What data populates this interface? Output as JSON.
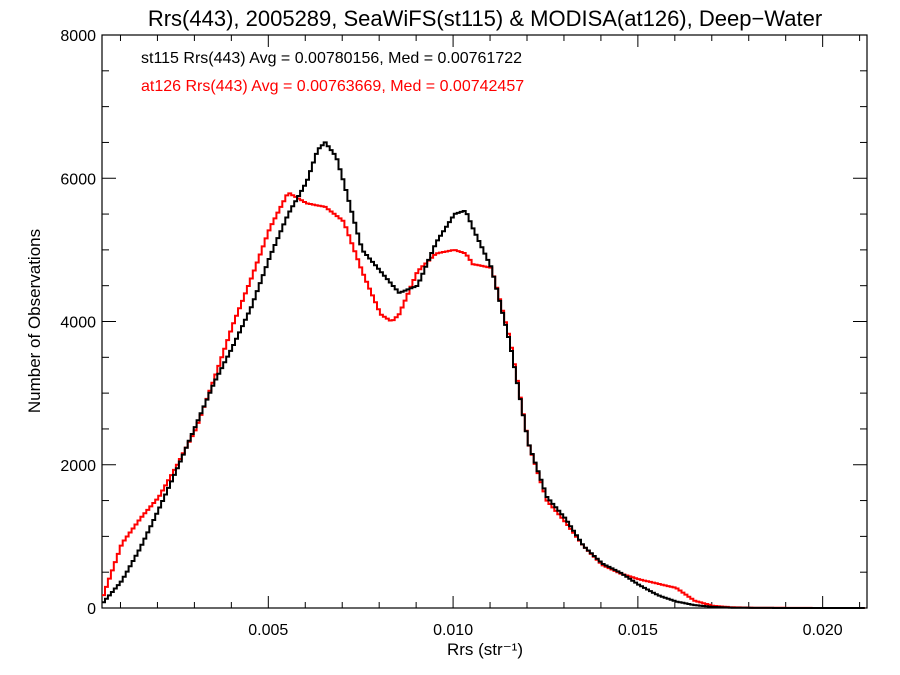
{
  "chart_data": {
    "type": "line",
    "title": "Rrs(443), 2005289, SeaWiFS(st115) & MODISA(at126), Deep−Water",
    "xlabel": "Rrs (str⁻¹)",
    "ylabel": "Number of Observations",
    "xlim": [
      0.0005,
      0.0212
    ],
    "ylim": [
      0,
      8000
    ],
    "xticks": [
      0.005,
      0.01,
      0.015,
      0.02
    ],
    "xtick_labels": [
      "0.005",
      "0.010",
      "0.015",
      "0.020"
    ],
    "yticks": [
      0,
      2000,
      4000,
      6000,
      8000
    ],
    "ytick_labels": [
      "0",
      "2000",
      "4000",
      "6000",
      "8000"
    ],
    "grid": false,
    "step_style": "histogram",
    "annotations": [
      {
        "text": "st115 Rrs(443) Avg = 0.00780156, Med = 0.00761722",
        "color": "#000000"
      },
      {
        "text": "at126 Rrs(443) Avg = 0.00763669, Med = 0.00742457",
        "color": "#ff0000"
      }
    ],
    "series": [
      {
        "color": "#000000",
        "x": [
          0.0005,
          0.001,
          0.0015,
          0.002,
          0.0025,
          0.003,
          0.0035,
          0.004,
          0.0045,
          0.005,
          0.0055,
          0.006,
          0.0063,
          0.0065,
          0.0068,
          0.007,
          0.0075,
          0.008,
          0.0085,
          0.009,
          0.0095,
          0.01,
          0.0103,
          0.0105,
          0.011,
          0.0115,
          0.012,
          0.0125,
          0.013,
          0.0135,
          0.014,
          0.0145,
          0.015,
          0.0155,
          0.016,
          0.0165,
          0.017,
          0.0175,
          0.018,
          0.019,
          0.02,
          0.0212
        ],
        "y": [
          80,
          380,
          840,
          1380,
          1950,
          2550,
          3150,
          3650,
          4200,
          4900,
          5500,
          5950,
          6400,
          6500,
          6300,
          5950,
          5000,
          4700,
          4400,
          4500,
          5100,
          5500,
          5550,
          5300,
          4750,
          3700,
          2300,
          1550,
          1250,
          860,
          620,
          490,
          320,
          180,
          90,
          40,
          15,
          5,
          2,
          0,
          0,
          0
        ]
      },
      {
        "color": "#ff0000",
        "x": [
          0.0005,
          0.001,
          0.0015,
          0.002,
          0.0025,
          0.003,
          0.0035,
          0.004,
          0.0045,
          0.005,
          0.0055,
          0.006,
          0.0065,
          0.007,
          0.0075,
          0.008,
          0.0083,
          0.0085,
          0.009,
          0.0095,
          0.01,
          0.0103,
          0.0105,
          0.011,
          0.0115,
          0.012,
          0.0125,
          0.013,
          0.0135,
          0.014,
          0.0145,
          0.015,
          0.0155,
          0.016,
          0.0165,
          0.017,
          0.0175,
          0.018,
          0.019,
          0.02,
          0.0212
        ],
        "y": [
          180,
          900,
          1250,
          1550,
          2000,
          2500,
          3200,
          3950,
          4600,
          5300,
          5800,
          5650,
          5600,
          5400,
          4700,
          4100,
          4000,
          4100,
          4700,
          4950,
          5000,
          4950,
          4800,
          4750,
          3750,
          2300,
          1500,
          1200,
          860,
          600,
          480,
          400,
          340,
          280,
          100,
          30,
          10,
          5,
          2,
          0,
          0
        ]
      }
    ]
  }
}
